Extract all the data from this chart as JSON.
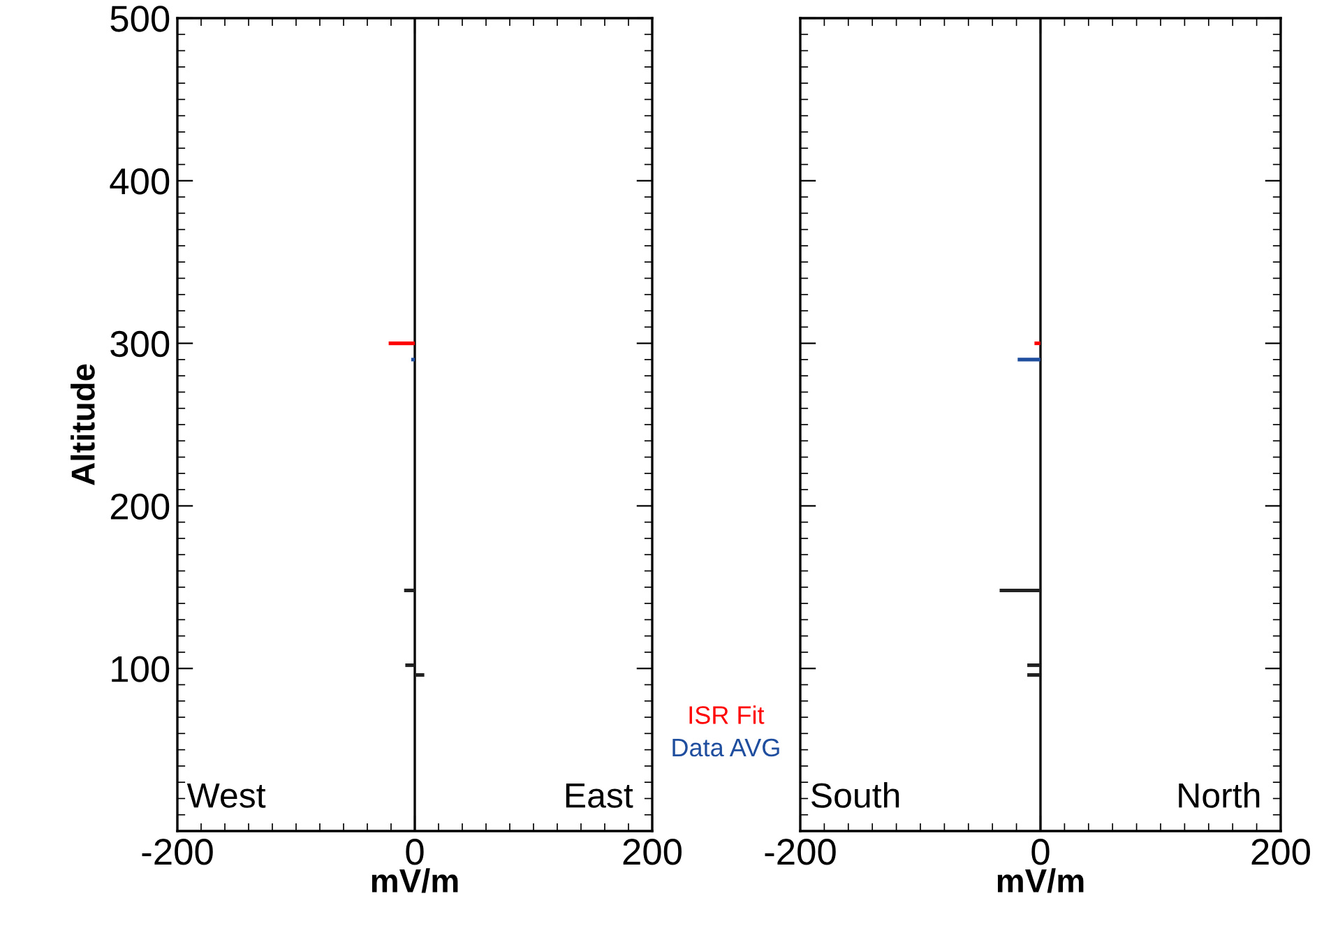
{
  "chart_data": [
    {
      "type": "bar",
      "orientation": "horizontal",
      "ylabel": "Altitude",
      "xlabel": "mV/m",
      "xlim": [
        -200,
        200
      ],
      "xticks": [
        -200,
        0,
        200
      ],
      "ylim": [
        0,
        500
      ],
      "yticks": [
        100,
        200,
        300,
        400,
        500
      ],
      "grid": false,
      "legend": "bottom right",
      "annotations": [
        "West",
        "East"
      ],
      "ref_lines": [
        {
          "axis": "x",
          "value": 0,
          "color": "#000000"
        }
      ],
      "series": [
        {
          "name": "ISR Fit",
          "color": "#ff0000",
          "x": [
            300
          ],
          "values": [
            -22
          ]
        },
        {
          "name": "Data AVG",
          "color": "#1f4e9e",
          "x": [
            290
          ],
          "values": [
            -3
          ]
        },
        {
          "color": "#222222",
          "x": [
            148,
            102,
            96
          ],
          "values": [
            -9,
            -8,
            8
          ]
        }
      ]
    },
    {
      "type": "bar",
      "orientation": "horizontal",
      "xlabel": "mV/m",
      "xlim": [
        -200,
        200
      ],
      "xticks": [
        -200,
        0,
        200
      ],
      "ylim": [
        0,
        500
      ],
      "yticks": [
        100,
        200,
        300,
        400,
        500
      ],
      "grid": false,
      "tick_labels": "x",
      "annotations": [
        "South",
        "North"
      ],
      "ref_lines": [
        {
          "axis": "x",
          "value": 0,
          "color": "#000000"
        }
      ],
      "series": [
        {
          "color": "#ff0000",
          "x": [
            300
          ],
          "values": [
            -5
          ]
        },
        {
          "color": "#1f4e9e",
          "x": [
            290
          ],
          "values": [
            -19
          ]
        },
        {
          "color": "#222222",
          "x": [
            148,
            102,
            96
          ],
          "values": [
            -34,
            -11,
            -11
          ]
        }
      ]
    }
  ]
}
